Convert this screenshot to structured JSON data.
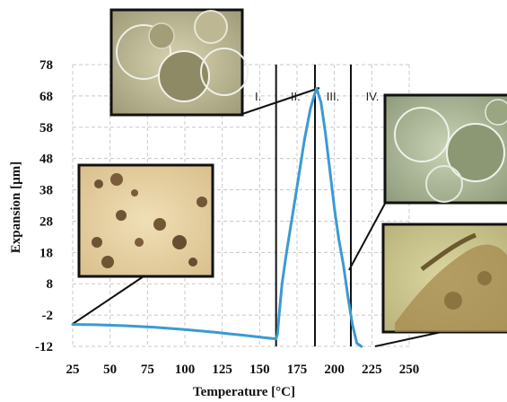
{
  "chart_data": {
    "type": "line",
    "title": "",
    "xlabel": "Temperature [°C]",
    "ylabel": "Expansion [µm]",
    "xlim": [
      25,
      250
    ],
    "ylim": [
      -12,
      78
    ],
    "x_ticks": [
      25,
      50,
      75,
      100,
      125,
      150,
      175,
      200,
      225,
      250
    ],
    "y_ticks": [
      78,
      68,
      58,
      48,
      38,
      28,
      18,
      8,
      -2,
      -12
    ],
    "grid": true,
    "series": [
      {
        "color": "#3b9ad2",
        "points": [
          [
            25,
            -5
          ],
          [
            40,
            -5.1
          ],
          [
            60,
            -5.4
          ],
          [
            80,
            -5.9
          ],
          [
            100,
            -6.6
          ],
          [
            120,
            -7.5
          ],
          [
            140,
            -8.5
          ],
          [
            155,
            -9.3
          ],
          [
            161,
            -9.6
          ],
          [
            162,
            -8
          ],
          [
            163,
            -2
          ],
          [
            165,
            8
          ],
          [
            168,
            18
          ],
          [
            172,
            30
          ],
          [
            176,
            42
          ],
          [
            180,
            54
          ],
          [
            184,
            64
          ],
          [
            188,
            70.5
          ],
          [
            191,
            66
          ],
          [
            194,
            56
          ],
          [
            197,
            44
          ],
          [
            200,
            32
          ],
          [
            203,
            22
          ],
          [
            206,
            14
          ],
          [
            209,
            4
          ],
          [
            212,
            -5
          ],
          [
            215,
            -11
          ],
          [
            218,
            -12
          ]
        ]
      }
    ],
    "vertical_lines": [
      161,
      187,
      211
    ],
    "region_labels": [
      "I.",
      "II.",
      "III.",
      "IV."
    ],
    "insets": [
      {
        "name": "particles-peak",
        "desc_color": "#b9b38e"
      },
      {
        "name": "particles-initial",
        "desc_color": "#e7d2a6"
      },
      {
        "name": "particles-expanded",
        "desc_color": "#a6b190"
      },
      {
        "name": "particles-final",
        "desc_color": "#c9c48a"
      }
    ]
  }
}
